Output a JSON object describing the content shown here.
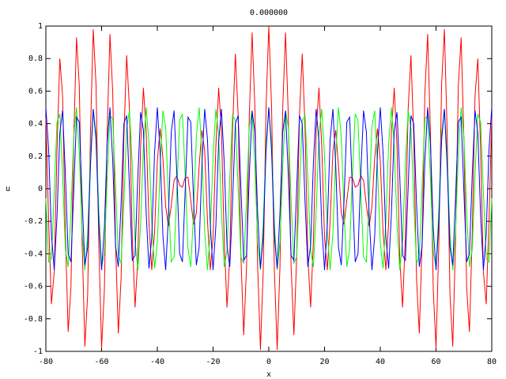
{
  "chart_data": {
    "type": "line",
    "title": "0.000000",
    "x_label": "x",
    "y_label": "u",
    "xlim": [
      -80,
      80
    ],
    "xticks": [
      -80,
      -60,
      -40,
      -20,
      0,
      20,
      40,
      60,
      80
    ],
    "ylim": [
      -1,
      1
    ],
    "yticks": [
      -1,
      -0.8,
      -0.6,
      -0.4,
      -0.2,
      0,
      0.2,
      0.4,
      0.6,
      0.8,
      1
    ],
    "x": [
      -80,
      -79,
      -78,
      -77,
      -76,
      -75,
      -74,
      -73,
      -72,
      -71,
      -70,
      -69,
      -68,
      -67,
      -66,
      -65,
      -64,
      -63,
      -62,
      -61,
      -60,
      -59,
      -58,
      -57,
      -56,
      -55,
      -54,
      -53,
      -52,
      -51,
      -50,
      -49,
      -48,
      -47,
      -46,
      -45,
      -44,
      -43,
      -42,
      -41,
      -40,
      -39,
      -38,
      -37,
      -36,
      -35,
      -34,
      -33,
      -32,
      -31,
      -30,
      -29,
      -28,
      -27,
      -26,
      -25,
      -24,
      -23,
      -22,
      -21,
      -20,
      -19,
      -18,
      -17,
      -16,
      -15,
      -14,
      -13,
      -12,
      -11,
      -10,
      -9,
      -8,
      -7,
      -6,
      -5,
      -4,
      -3,
      -2,
      -1,
      0,
      1,
      2,
      3,
      4,
      5,
      6,
      7,
      8,
      9,
      10,
      11,
      12,
      13,
      14,
      15,
      16,
      17,
      18,
      19,
      20,
      21,
      22,
      23,
      24,
      25,
      26,
      27,
      28,
      29,
      30,
      31,
      32,
      33,
      34,
      35,
      36,
      37,
      38,
      39,
      40,
      41,
      42,
      43,
      44,
      45,
      46,
      47,
      48,
      49,
      50,
      51,
      52,
      53,
      54,
      55,
      56,
      57,
      58,
      59,
      60,
      61,
      62,
      63,
      64,
      65,
      66,
      67,
      68,
      69,
      70,
      71,
      72,
      73,
      74,
      75,
      76,
      77,
      78,
      79,
      80
    ],
    "series": [
      {
        "color": "#ff0000",
        "values": [
          0.44,
          -0.2,
          -0.71,
          -0.51,
          0.24,
          0.8,
          0.57,
          -0.27,
          -0.88,
          -0.61,
          0.3,
          0.93,
          0.63,
          -0.32,
          -0.97,
          -0.65,
          0.34,
          0.98,
          0.64,
          -0.34,
          -0.98,
          -0.62,
          0.34,
          0.95,
          0.59,
          -0.33,
          -0.89,
          -0.55,
          0.32,
          0.82,
          0.49,
          -0.29,
          -0.73,
          -0.43,
          0.26,
          0.62,
          0.35,
          -0.21,
          -0.5,
          -0.27,
          0.17,
          0.37,
          0.19,
          -0.11,
          -0.23,
          -0.1,
          0.05,
          0.08,
          0.02,
          0.01,
          0.07,
          0.07,
          -0.07,
          -0.22,
          -0.15,
          0.14,
          0.36,
          0.23,
          -0.2,
          -0.5,
          -0.3,
          0.26,
          0.62,
          0.36,
          -0.32,
          -0.73,
          -0.41,
          0.37,
          0.83,
          0.45,
          -0.42,
          -0.9,
          -0.48,
          0.45,
          0.96,
          0.5,
          -0.48,
          -0.99,
          -0.5,
          0.5,
          1,
          0.5,
          -0.5,
          -0.99,
          -0.48,
          0.5,
          0.96,
          0.45,
          -0.48,
          -0.9,
          -0.42,
          0.45,
          0.83,
          0.37,
          -0.41,
          -0.73,
          -0.32,
          0.36,
          0.62,
          0.26,
          -0.3,
          -0.5,
          -0.2,
          0.23,
          0.36,
          0.14,
          -0.15,
          -0.22,
          -0.07,
          0.07,
          0.07,
          0.01,
          0.02,
          0.08,
          0.05,
          -0.1,
          -0.23,
          -0.11,
          0.19,
          0.37,
          0.17,
          -0.27,
          -0.5,
          -0.21,
          0.35,
          0.62,
          0.26,
          -0.43,
          -0.73,
          -0.29,
          0.49,
          0.82,
          0.32,
          -0.55,
          -0.89,
          -0.33,
          0.59,
          0.95,
          0.34,
          -0.62,
          -0.98,
          -0.34,
          0.64,
          0.98,
          0.34,
          -0.65,
          -0.97,
          -0.32,
          0.63,
          0.93,
          0.3,
          -0.61,
          -0.88,
          -0.27,
          0.57,
          0.8,
          0.24,
          -0.51,
          -0.71,
          -0.2,
          0.44
        ]
      },
      {
        "color": "#00ff00",
        "values": [
          -0.06,
          -0.45,
          -0.43,
          -0.02,
          0.41,
          0.46,
          0.09,
          -0.37,
          -0.48,
          -0.15,
          0.32,
          0.5,
          0.22,
          -0.26,
          -0.5,
          -0.28,
          0.2,
          0.49,
          0.34,
          -0.13,
          -0.48,
          -0.39,
          0.06,
          0.45,
          0.43,
          0.01,
          -0.41,
          -0.46,
          -0.08,
          0.37,
          0.48,
          0.15,
          -0.32,
          -0.5,
          -0.22,
          0.26,
          0.5,
          0.28,
          -0.2,
          -0.49,
          -0.33,
          0.13,
          0.48,
          0.38,
          -0.06,
          -0.45,
          -0.42,
          -0.01,
          0.42,
          0.46,
          0.08,
          -0.37,
          -0.48,
          -0.15,
          0.32,
          0.5,
          0.21,
          -0.27,
          -0.5,
          -0.27,
          0.2,
          0.49,
          0.33,
          -0.14,
          -0.48,
          -0.38,
          0.07,
          0.45,
          0.42,
          0,
          -0.42,
          -0.46,
          -0.07,
          0.38,
          0.48,
          0.14,
          -0.33,
          -0.5,
          -0.21,
          0.27,
          0.5,
          0.27,
          -0.21,
          -0.5,
          -0.33,
          0.14,
          0.48,
          0.38,
          -0.07,
          -0.46,
          -0.42,
          0,
          0.42,
          0.45,
          0.07,
          -0.38,
          -0.48,
          -0.14,
          0.33,
          0.49,
          0.2,
          -0.27,
          -0.5,
          -0.27,
          0.21,
          0.5,
          0.32,
          -0.15,
          -0.48,
          -0.37,
          0.08,
          0.46,
          0.42,
          -0.01,
          -0.42,
          -0.45,
          -0.06,
          0.38,
          0.48,
          0.13,
          -0.33,
          -0.49,
          -0.2,
          0.28,
          0.5,
          0.26,
          -0.22,
          -0.5,
          -0.32,
          0.15,
          0.48,
          0.37,
          -0.08,
          -0.46,
          -0.41,
          0.01,
          0.43,
          0.45,
          0.06,
          -0.39,
          -0.48,
          -0.13,
          0.34,
          0.49,
          0.2,
          -0.28,
          -0.5,
          -0.26,
          0.22,
          0.5,
          0.32,
          -0.15,
          -0.48,
          -0.37,
          0.09,
          0.46,
          0.41,
          -0.02,
          -0.43,
          -0.45,
          -0.06
        ]
      },
      {
        "color": "#0000ff",
        "values": [
          0.5,
          0.24,
          -0.28,
          -0.5,
          -0.17,
          0.34,
          0.48,
          0.09,
          -0.4,
          -0.45,
          -0.02,
          0.44,
          0.41,
          -0.06,
          -0.47,
          -0.36,
          0.14,
          0.49,
          0.3,
          -0.21,
          -0.5,
          -0.24,
          0.28,
          0.5,
          0.17,
          -0.35,
          -0.48,
          -0.09,
          0.4,
          0.45,
          0.01,
          -0.44,
          -0.41,
          0.07,
          0.47,
          0.36,
          -0.15,
          -0.49,
          -0.3,
          0.22,
          0.5,
          0.23,
          -0.29,
          -0.5,
          -0.16,
          0.35,
          0.48,
          0.09,
          -0.4,
          -0.45,
          -0.01,
          0.44,
          0.41,
          -0.07,
          -0.47,
          -0.36,
          0.15,
          0.49,
          0.3,
          -0.22,
          -0.5,
          -0.23,
          0.29,
          0.49,
          0.16,
          -0.35,
          -0.48,
          -0.08,
          0.4,
          0.45,
          0,
          -0.44,
          -0.41,
          0.08,
          0.48,
          0.35,
          -0.15,
          -0.49,
          -0.29,
          0.23,
          0.5,
          0.23,
          -0.29,
          -0.49,
          -0.15,
          0.35,
          0.48,
          0.08,
          -0.41,
          -0.44,
          0,
          0.45,
          0.4,
          -0.08,
          -0.48,
          -0.35,
          0.16,
          0.49,
          0.29,
          -0.23,
          -0.5,
          -0.22,
          0.3,
          0.49,
          0.15,
          -0.36,
          -0.47,
          -0.07,
          0.41,
          0.44,
          -0.01,
          -0.45,
          -0.4,
          0.09,
          0.48,
          0.35,
          -0.16,
          -0.5,
          -0.29,
          0.23,
          0.5,
          0.22,
          -0.3,
          -0.49,
          -0.15,
          0.36,
          0.47,
          0.07,
          -0.41,
          -0.44,
          0.01,
          0.45,
          0.4,
          -0.09,
          -0.48,
          -0.35,
          0.17,
          0.5,
          0.28,
          -0.24,
          -0.5,
          -0.21,
          0.3,
          0.49,
          0.14,
          -0.36,
          -0.47,
          -0.06,
          0.41,
          0.44,
          -0.02,
          -0.45,
          -0.4,
          0.09,
          0.48,
          0.34,
          -0.17,
          -0.5,
          -0.28,
          0.24,
          0.5
        ]
      }
    ]
  }
}
